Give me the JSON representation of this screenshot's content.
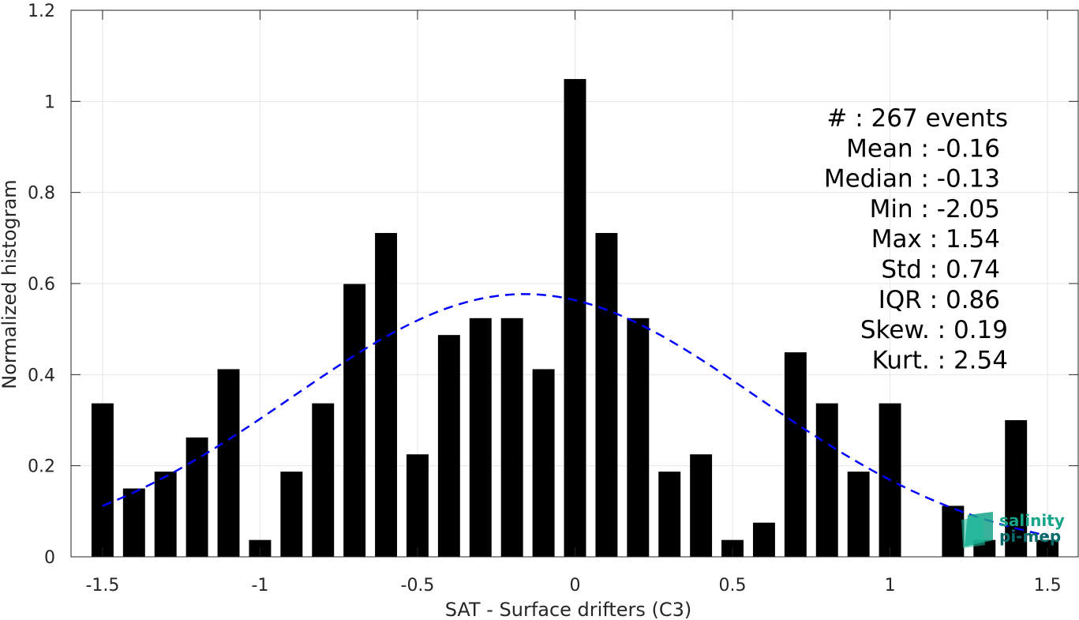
{
  "chart_data": {
    "type": "bar",
    "xlabel": "SAT - Surface drifters (C3)",
    "ylabel": "Normalized histogram",
    "xlim": [
      -1.6,
      1.6
    ],
    "ylim": [
      0,
      1.2
    ],
    "xticks": [
      -1.5,
      -1,
      -0.5,
      0,
      0.5,
      1,
      1.5
    ],
    "xtick_labels": [
      "-1.5",
      "-1",
      "-0.5",
      "0",
      "0.5",
      "1",
      "1.5"
    ],
    "yticks": [
      0,
      0.2,
      0.4,
      0.6,
      0.8,
      1,
      1.2
    ],
    "ytick_labels": [
      "0",
      "0.2",
      "0.4",
      "0.6",
      "0.8",
      "1",
      "1.2"
    ],
    "grid": true,
    "bar_width": 0.07,
    "bars": {
      "x": [
        -1.5,
        -1.4,
        -1.3,
        -1.2,
        -1.1,
        -1.0,
        -0.9,
        -0.8,
        -0.7,
        -0.6,
        -0.5,
        -0.4,
        -0.3,
        -0.2,
        -0.1,
        0.0,
        0.1,
        0.2,
        0.3,
        0.4,
        0.5,
        0.6,
        0.7,
        0.8,
        0.9,
        1.0,
        1.1,
        1.2,
        1.3,
        1.4,
        1.5
      ],
      "values": [
        0.337,
        0.15,
        0.187,
        0.262,
        0.412,
        0.037,
        0.187,
        0.337,
        0.599,
        0.711,
        0.225,
        0.487,
        0.524,
        0.524,
        0.412,
        1.049,
        0.711,
        0.524,
        0.187,
        0.225,
        0.037,
        0.075,
        0.449,
        0.337,
        0.187,
        0.337,
        0.0,
        0.112,
        0.037,
        0.3,
        0.037
      ],
      "color": "#000000"
    },
    "fit": {
      "type": "gaussian",
      "mean": -0.16,
      "std": 0.74,
      "x_range": [
        -1.5,
        1.5
      ],
      "color": "#0000ff",
      "style": "dashed"
    },
    "stats_lines": [
      "#  : 267 events",
      "Mean : -0.16",
      "Median : -0.13",
      "Min : -2.05",
      "Max : 1.54",
      "Std : 0.74",
      "IQR : 0.86",
      "Skew. : 0.19",
      "Kurt. : 2.54"
    ]
  },
  "logo": {
    "line1": "salinity",
    "line2": "pi-mep",
    "color_primary": "#17a589",
    "color_secondary": "#0b6b6b"
  }
}
